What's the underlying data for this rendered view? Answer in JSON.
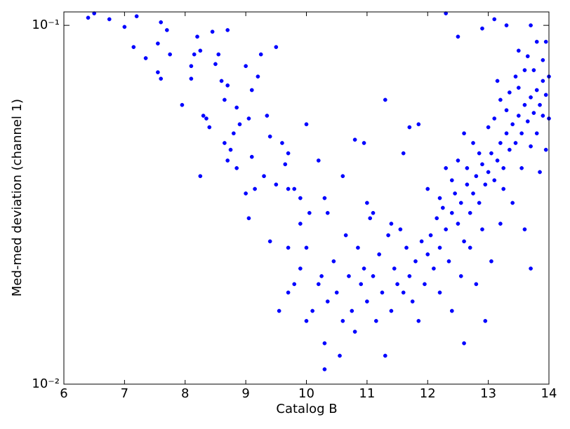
{
  "chart_data": {
    "type": "scatter",
    "xlabel": "Catalog B",
    "ylabel": "Med-med deviation (channel 1)",
    "color": "#0000ff",
    "ylog": true,
    "xlim": [
      6,
      14
    ],
    "xticks": [
      6,
      7,
      8,
      9,
      10,
      11,
      12,
      13,
      14
    ],
    "ylim": [
      0.01,
      0.109
    ],
    "yticks": [
      {
        "value": 0.01,
        "label": "10⁻²"
      },
      {
        "value": 0.1,
        "label": "10⁻¹"
      }
    ],
    "x": [
      6.4,
      6.5,
      6.75,
      7.0,
      7.2,
      7.15,
      7.35,
      7.55,
      7.6,
      7.7,
      7.55,
      7.6,
      7.75,
      7.95,
      8.1,
      8.1,
      8.15,
      8.2,
      8.25,
      8.3,
      8.35,
      8.4,
      8.45,
      8.5,
      8.55,
      8.6,
      8.65,
      8.7,
      8.7,
      8.65,
      8.75,
      8.8,
      8.85,
      8.9,
      8.7,
      8.25,
      8.85,
      9.0,
      9.05,
      9.1,
      9.15,
      9.2,
      9.25,
      9.0,
      9.1,
      9.35,
      9.4,
      9.3,
      9.5,
      9.5,
      9.6,
      9.65,
      9.7,
      9.7,
      9.8,
      9.9,
      10.0,
      10.05,
      9.05,
      9.4,
      9.7,
      9.9,
      10.2,
      10.3,
      10.35,
      9.55,
      9.7,
      9.8,
      9.9,
      10.0,
      10.0,
      10.1,
      10.2,
      10.25,
      10.3,
      10.3,
      10.35,
      10.45,
      10.5,
      10.55,
      10.6,
      10.65,
      10.7,
      10.75,
      10.8,
      10.85,
      10.9,
      10.95,
      11.0,
      11.05,
      11.1,
      11.15,
      11.2,
      11.25,
      11.3,
      11.35,
      11.4,
      11.45,
      11.5,
      11.55,
      11.6,
      11.65,
      11.7,
      11.75,
      11.8,
      11.85,
      11.9,
      11.95,
      12.0,
      10.8,
      11.3,
      11.7,
      11.85,
      11.6,
      10.95,
      10.6,
      11.0,
      11.4,
      11.1,
      12.05,
      12.1,
      12.15,
      12.2,
      12.25,
      12.3,
      12.35,
      12.4,
      12.45,
      12.5,
      12.55,
      12.6,
      12.65,
      12.7,
      12.75,
      12.8,
      12.85,
      12.9,
      12.95,
      13.0,
      13.05,
      13.1,
      13.15,
      13.2,
      13.25,
      13.3,
      13.35,
      13.4,
      13.45,
      13.5,
      13.55,
      13.6,
      13.65,
      13.7,
      13.75,
      13.8,
      13.85,
      13.9,
      13.95,
      14.0,
      13.9,
      13.8,
      13.7,
      13.3,
      13.1,
      12.9,
      12.5,
      12.3,
      13.5,
      13.6,
      13.95,
      14.0,
      13.95,
      13.85,
      13.6,
      13.7,
      13.4,
      13.2,
      13.05,
      12.8,
      12.6,
      12.4,
      12.2,
      12.95,
      13.3,
      13.0,
      12.75,
      12.5,
      13.5,
      13.75,
      13.65,
      13.45,
      13.2,
      13.1,
      12.85,
      12.65,
      12.4,
      12.2,
      12.9,
      12.7,
      12.55,
      13.55,
      13.25,
      13.8,
      13.9,
      13.7,
      13.35,
      13.15,
      12.6,
      12.3,
      12.0
    ],
    "values": [
      0.105,
      0.108,
      0.104,
      0.099,
      0.106,
      0.087,
      0.081,
      0.089,
      0.102,
      0.097,
      0.074,
      0.071,
      0.083,
      0.06,
      0.071,
      0.077,
      0.083,
      0.093,
      0.085,
      0.056,
      0.055,
      0.052,
      0.096,
      0.078,
      0.083,
      0.07,
      0.062,
      0.097,
      0.068,
      0.047,
      0.045,
      0.05,
      0.059,
      0.053,
      0.042,
      0.038,
      0.04,
      0.077,
      0.055,
      0.043,
      0.035,
      0.072,
      0.083,
      0.034,
      0.066,
      0.056,
      0.049,
      0.038,
      0.087,
      0.036,
      0.047,
      0.041,
      0.035,
      0.044,
      0.035,
      0.028,
      0.053,
      0.03,
      0.029,
      0.025,
      0.024,
      0.033,
      0.042,
      0.033,
      0.03,
      0.016,
      0.018,
      0.019,
      0.021,
      0.024,
      0.015,
      0.016,
      0.019,
      0.02,
      0.011,
      0.013,
      0.017,
      0.022,
      0.018,
      0.012,
      0.015,
      0.026,
      0.02,
      0.016,
      0.014,
      0.024,
      0.019,
      0.021,
      0.017,
      0.029,
      0.02,
      0.015,
      0.023,
      0.018,
      0.012,
      0.026,
      0.016,
      0.021,
      0.019,
      0.027,
      0.018,
      0.024,
      0.02,
      0.017,
      0.022,
      0.015,
      0.025,
      0.019,
      0.023,
      0.048,
      0.062,
      0.052,
      0.053,
      0.044,
      0.047,
      0.038,
      0.032,
      0.028,
      0.03,
      0.026,
      0.021,
      0.029,
      0.024,
      0.031,
      0.027,
      0.022,
      0.03,
      0.034,
      0.028,
      0.032,
      0.025,
      0.036,
      0.03,
      0.034,
      0.038,
      0.032,
      0.041,
      0.036,
      0.039,
      0.044,
      0.037,
      0.042,
      0.047,
      0.04,
      0.05,
      0.045,
      0.053,
      0.047,
      0.056,
      0.05,
      0.06,
      0.054,
      0.063,
      0.057,
      0.066,
      0.06,
      0.07,
      0.064,
      0.072,
      0.08,
      0.09,
      0.1,
      0.1,
      0.104,
      0.098,
      0.093,
      0.108,
      0.085,
      0.075,
      0.09,
      0.055,
      0.045,
      0.039,
      0.027,
      0.021,
      0.032,
      0.028,
      0.022,
      0.019,
      0.013,
      0.016,
      0.018,
      0.015,
      0.058,
      0.052,
      0.047,
      0.042,
      0.067,
      0.075,
      0.082,
      0.072,
      0.062,
      0.055,
      0.044,
      0.04,
      0.037,
      0.033,
      0.027,
      0.024,
      0.02,
      0.04,
      0.035,
      0.05,
      0.056,
      0.046,
      0.065,
      0.07,
      0.05,
      0.04,
      0.035
    ]
  }
}
